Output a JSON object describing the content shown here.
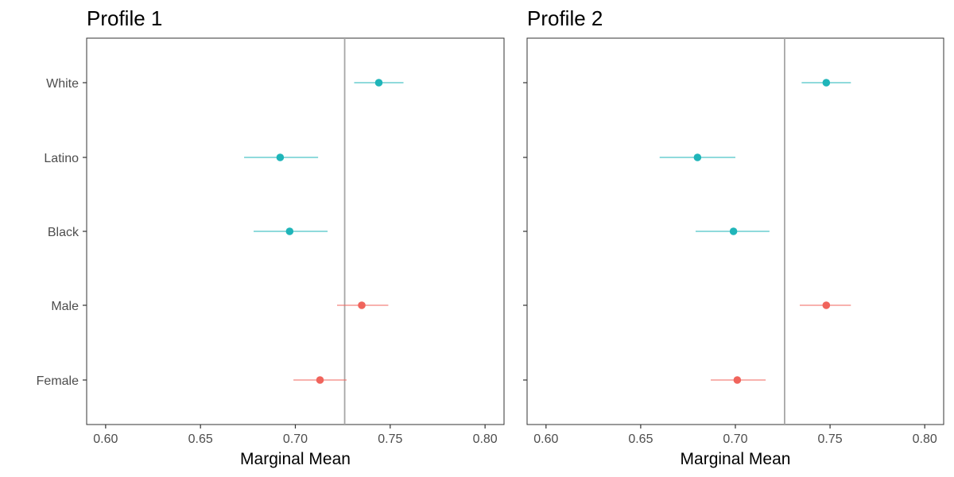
{
  "chart_data": {
    "type": "scatter",
    "style": "dot-whisker",
    "grid": false,
    "legend": "none",
    "colors": {
      "Race": "#1fb5b9",
      "Gender": "#f0645c",
      "reference_line": "#a6a6a6"
    },
    "categories": [
      "White",
      "Latino",
      "Black",
      "Male",
      "Female"
    ],
    "xlabel": "Marginal Mean",
    "xlim": [
      0.59,
      0.81
    ],
    "xticks": [
      "0.60",
      "0.65",
      "0.70",
      "0.75",
      "0.80"
    ],
    "reference_x": 0.726,
    "panels": [
      {
        "title": "Profile 1",
        "points": [
          {
            "level": "White",
            "group": "Race",
            "estimate": 0.744,
            "lower": 0.731,
            "upper": 0.757
          },
          {
            "level": "Latino",
            "group": "Race",
            "estimate": 0.692,
            "lower": 0.673,
            "upper": 0.712
          },
          {
            "level": "Black",
            "group": "Race",
            "estimate": 0.697,
            "lower": 0.678,
            "upper": 0.717
          },
          {
            "level": "Male",
            "group": "Gender",
            "estimate": 0.735,
            "lower": 0.722,
            "upper": 0.749
          },
          {
            "level": "Female",
            "group": "Gender",
            "estimate": 0.713,
            "lower": 0.699,
            "upper": 0.727
          }
        ]
      },
      {
        "title": "Profile 2",
        "points": [
          {
            "level": "White",
            "group": "Race",
            "estimate": 0.748,
            "lower": 0.735,
            "upper": 0.761
          },
          {
            "level": "Latino",
            "group": "Race",
            "estimate": 0.68,
            "lower": 0.66,
            "upper": 0.7
          },
          {
            "level": "Black",
            "group": "Race",
            "estimate": 0.699,
            "lower": 0.679,
            "upper": 0.718
          },
          {
            "level": "Male",
            "group": "Gender",
            "estimate": 0.748,
            "lower": 0.734,
            "upper": 0.761
          },
          {
            "level": "Female",
            "group": "Gender",
            "estimate": 0.701,
            "lower": 0.687,
            "upper": 0.716
          }
        ]
      }
    ]
  }
}
